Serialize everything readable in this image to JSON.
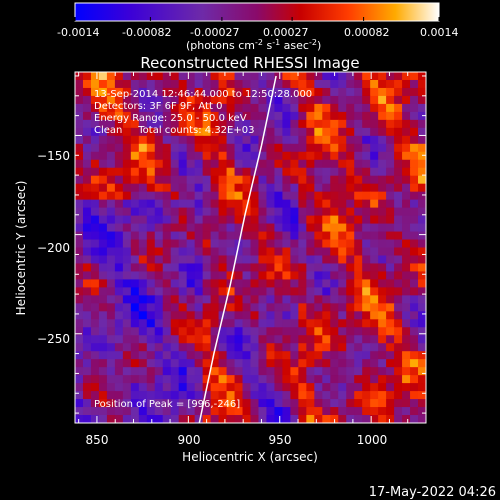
{
  "colorbar": {
    "ticks": [
      "-0.0014",
      "-0.00082",
      "-0.00027",
      "0.00027",
      "0.00082",
      "0.0014"
    ],
    "tick_values": [
      -0.0014,
      -0.00082,
      -0.00027,
      0.00027,
      0.00082,
      0.0014
    ],
    "unit_main": "(photons cm",
    "unit_exp1": "-2",
    "unit_s": " s",
    "unit_exp2": "-1",
    "unit_asec": " asec",
    "unit_exp3": "-2",
    "unit_close": ")",
    "range": [
      -0.0014,
      0.0014
    ]
  },
  "chart_data": {
    "type": "heatmap",
    "title": "Reconstructed RHESSI Image",
    "xlabel": "Heliocentric X (arcsec)",
    "ylabel": "Heliocentric Y (arcsec)",
    "xlim": [
      838,
      1030
    ],
    "ylim": [
      -295,
      -118
    ],
    "xticks": [
      850,
      900,
      950,
      1000
    ],
    "xtick_labels": [
      "850",
      "900",
      "950",
      "1000"
    ],
    "yticks": [
      -150,
      -200,
      -250
    ],
    "ytick_labels": [
      "−150",
      "−200",
      "−250"
    ],
    "annotations": {
      "line1": "13-Sep-2014 12:46:44.000 to 12:50:28.000",
      "line2": "Detectors: 3F 6F 9F, Att 0",
      "line3": "Energy Range: 25.0 - 50.0 keV",
      "line4": "Clean     Total counts: 4.32E+03",
      "peak": "Position of Peak = [996,-246]"
    },
    "limb": {
      "x": [
        906,
        914,
        923,
        931,
        940,
        948
      ],
      "y": [
        -295,
        -260,
        -225,
        -190,
        -155,
        -120
      ]
    },
    "peak": {
      "x": 996,
      "y": -246
    }
  },
  "footer": {
    "timestamp": "17-May-2022 04:26"
  }
}
